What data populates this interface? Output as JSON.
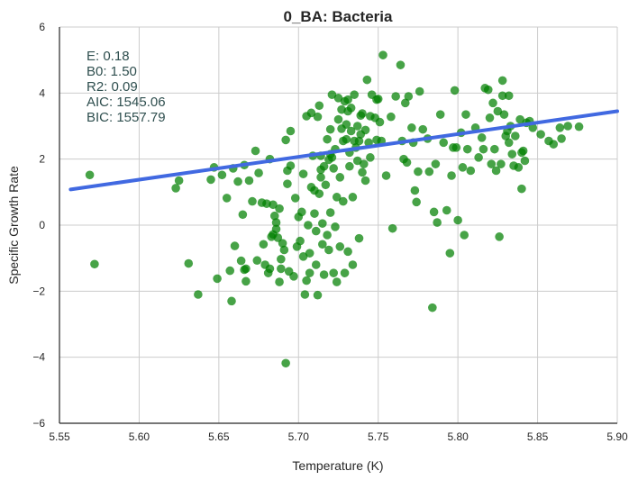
{
  "chart_data": {
    "type": "scatter",
    "title": "0_BA: Bacteria",
    "xlabel": "Temperature (K)",
    "ylabel": "Specific Growth Rate",
    "xlim": [
      5.55,
      5.9
    ],
    "ylim": [
      -6,
      6
    ],
    "x_ticks": [
      "5.55",
      "5.60",
      "5.65",
      "5.70",
      "5.75",
      "5.80",
      "5.85",
      "5.90"
    ],
    "y_ticks": [
      "−6",
      "−4",
      "−2",
      "0",
      "2",
      "4",
      "6"
    ],
    "x_tick_values": [
      5.55,
      5.6,
      5.65,
      5.7,
      5.75,
      5.8,
      5.85,
      5.9
    ],
    "y_tick_values": [
      -6,
      -4,
      -2,
      0,
      2,
      4,
      6
    ],
    "grid": true,
    "colors": {
      "points": "#008000",
      "fit_line": "#4169e1",
      "stats_text": "#2f4f4f",
      "grid": "#cccccc"
    },
    "stats": {
      "e": "E:  0.18",
      "b0": "B0:  1.50",
      "r2": "R2:  0.09",
      "aic": "AIC: 1545.06",
      "bic": "BIC: 1557.79"
    },
    "fit_line": {
      "x": [
        5.557,
        5.9
      ],
      "y": [
        1.08,
        3.45
      ]
    },
    "series": [
      {
        "points": [
          [
            5.569,
            1.52
          ],
          [
            5.572,
            -1.18
          ],
          [
            5.623,
            1.12
          ],
          [
            5.625,
            1.35
          ],
          [
            5.631,
            -1.16
          ],
          [
            5.637,
            -2.1
          ],
          [
            5.645,
            1.38
          ],
          [
            5.647,
            1.75
          ],
          [
            5.649,
            -1.62
          ],
          [
            5.652,
            1.52
          ],
          [
            5.655,
            0.82
          ],
          [
            5.657,
            -1.38
          ],
          [
            5.658,
            -2.3
          ],
          [
            5.659,
            1.72
          ],
          [
            5.66,
            -0.63
          ],
          [
            5.662,
            1.32
          ],
          [
            5.664,
            -1.08
          ],
          [
            5.665,
            0.32
          ],
          [
            5.666,
            1.82
          ],
          [
            5.666,
            -1.35
          ],
          [
            5.667,
            -1.32
          ],
          [
            5.667,
            -1.7
          ],
          [
            5.669,
            1.35
          ],
          [
            5.671,
            0.72
          ],
          [
            5.673,
            2.25
          ],
          [
            5.674,
            -1.07
          ],
          [
            5.675,
            1.58
          ],
          [
            5.677,
            0.68
          ],
          [
            5.678,
            -0.58
          ],
          [
            5.679,
            -1.2
          ],
          [
            5.68,
            0.65
          ],
          [
            5.681,
            -1.45
          ],
          [
            5.682,
            2.0
          ],
          [
            5.682,
            -1.32
          ],
          [
            5.683,
            -0.35
          ],
          [
            5.684,
            -0.28
          ],
          [
            5.684,
            0.62
          ],
          [
            5.685,
            0.28
          ],
          [
            5.686,
            0.08
          ],
          [
            5.686,
            -0.12
          ],
          [
            5.687,
            -0.38
          ],
          [
            5.688,
            0.5
          ],
          [
            5.688,
            -1.72
          ],
          [
            5.689,
            -1.03
          ],
          [
            5.689,
            -1.32
          ],
          [
            5.69,
            -0.55
          ],
          [
            5.691,
            -0.75
          ],
          [
            5.692,
            -4.18
          ],
          [
            5.692,
            2.58
          ],
          [
            5.693,
            1.65
          ],
          [
            5.693,
            1.25
          ],
          [
            5.694,
            -1.4
          ],
          [
            5.695,
            1.8
          ],
          [
            5.695,
            2.85
          ],
          [
            5.697,
            -1.55
          ],
          [
            5.698,
            0.82
          ],
          [
            5.699,
            -0.65
          ],
          [
            5.7,
            0.25
          ],
          [
            5.701,
            -0.48
          ],
          [
            5.702,
            0.4
          ],
          [
            5.703,
            1.55
          ],
          [
            5.703,
            -0.95
          ],
          [
            5.704,
            -2.1
          ],
          [
            5.705,
            -1.68
          ],
          [
            5.706,
            0.0
          ],
          [
            5.707,
            -0.85
          ],
          [
            5.707,
            -1.45
          ],
          [
            5.708,
            3.4
          ],
          [
            5.708,
            1.15
          ],
          [
            5.709,
            2.1
          ],
          [
            5.71,
            0.35
          ],
          [
            5.71,
            1.05
          ],
          [
            5.711,
            -0.18
          ],
          [
            5.711,
            -1.2
          ],
          [
            5.712,
            -2.12
          ],
          [
            5.712,
            3.28
          ],
          [
            5.713,
            0.95
          ],
          [
            5.713,
            3.62
          ],
          [
            5.714,
            1.45
          ],
          [
            5.714,
            1.68
          ],
          [
            5.715,
            0.05
          ],
          [
            5.715,
            -0.58
          ],
          [
            5.716,
            1.78
          ],
          [
            5.716,
            -1.5
          ],
          [
            5.717,
            1.22
          ],
          [
            5.718,
            2.6
          ],
          [
            5.718,
            -0.3
          ],
          [
            5.719,
            1.98
          ],
          [
            5.719,
            -0.75
          ],
          [
            5.72,
            2.15
          ],
          [
            5.72,
            0.38
          ],
          [
            5.721,
            3.95
          ],
          [
            5.721,
            2.05
          ],
          [
            5.722,
            1.72
          ],
          [
            5.722,
            -1.45
          ],
          [
            5.723,
            2.3
          ],
          [
            5.723,
            -0.05
          ],
          [
            5.724,
            0.85
          ],
          [
            5.724,
            -1.72
          ],
          [
            5.725,
            3.85
          ],
          [
            5.725,
            3.2
          ],
          [
            5.726,
            1.45
          ],
          [
            5.726,
            -0.65
          ],
          [
            5.727,
            3.5
          ],
          [
            5.727,
            2.92
          ],
          [
            5.728,
            2.55
          ],
          [
            5.728,
            0.72
          ],
          [
            5.729,
            3.75
          ],
          [
            5.729,
            -1.45
          ],
          [
            5.73,
            3.05
          ],
          [
            5.73,
            2.6
          ],
          [
            5.731,
            3.45
          ],
          [
            5.731,
            -0.8
          ],
          [
            5.732,
            2.2
          ],
          [
            5.732,
            1.78
          ],
          [
            5.733,
            3.55
          ],
          [
            5.733,
            2.85
          ],
          [
            5.734,
            0.85
          ],
          [
            5.734,
            -1.2
          ],
          [
            5.735,
            3.95
          ],
          [
            5.735,
            2.55
          ],
          [
            5.736,
            2.35
          ],
          [
            5.737,
            3.0
          ],
          [
            5.737,
            1.95
          ],
          [
            5.738,
            2.55
          ],
          [
            5.738,
            -0.4
          ],
          [
            5.739,
            3.32
          ],
          [
            5.739,
            2.75
          ],
          [
            5.74,
            1.6
          ],
          [
            5.74,
            3.38
          ],
          [
            5.741,
            1.85
          ],
          [
            5.742,
            1.35
          ],
          [
            5.742,
            2.88
          ],
          [
            5.743,
            4.4
          ],
          [
            5.744,
            2.5
          ],
          [
            5.745,
            3.3
          ],
          [
            5.745,
            2.05
          ],
          [
            5.746,
            3.95
          ],
          [
            5.748,
            3.25
          ],
          [
            5.749,
            3.8
          ],
          [
            5.749,
            2.58
          ],
          [
            5.75,
            3.82
          ],
          [
            5.751,
            3.12
          ],
          [
            5.752,
            2.55
          ],
          [
            5.753,
            5.15
          ],
          [
            5.755,
            1.5
          ],
          [
            5.758,
            3.28
          ],
          [
            5.759,
            -0.1
          ],
          [
            5.761,
            3.9
          ],
          [
            5.764,
            4.85
          ],
          [
            5.765,
            2.55
          ],
          [
            5.766,
            2.0
          ],
          [
            5.767,
            3.7
          ],
          [
            5.768,
            1.9
          ],
          [
            5.769,
            3.9
          ],
          [
            5.771,
            2.95
          ],
          [
            5.772,
            2.5
          ],
          [
            5.773,
            1.05
          ],
          [
            5.774,
            0.7
          ],
          [
            5.775,
            1.62
          ],
          [
            5.776,
            4.05
          ],
          [
            5.778,
            2.9
          ],
          [
            5.781,
            2.62
          ],
          [
            5.782,
            1.62
          ],
          [
            5.784,
            -2.5
          ],
          [
            5.785,
            0.4
          ],
          [
            5.786,
            1.85
          ],
          [
            5.787,
            0.08
          ],
          [
            5.789,
            3.35
          ],
          [
            5.791,
            2.5
          ],
          [
            5.793,
            0.45
          ],
          [
            5.795,
            -0.85
          ],
          [
            5.796,
            1.5
          ],
          [
            5.797,
            2.35
          ],
          [
            5.798,
            4.08
          ],
          [
            5.799,
            2.35
          ],
          [
            5.8,
            0.15
          ],
          [
            5.802,
            2.8
          ],
          [
            5.803,
            1.75
          ],
          [
            5.804,
            -0.3
          ],
          [
            5.805,
            3.35
          ],
          [
            5.806,
            2.3
          ],
          [
            5.808,
            1.65
          ],
          [
            5.811,
            2.95
          ],
          [
            5.813,
            2.05
          ],
          [
            5.815,
            2.65
          ],
          [
            5.816,
            2.3
          ],
          [
            5.817,
            4.15
          ],
          [
            5.819,
            4.1
          ],
          [
            5.82,
            3.25
          ],
          [
            5.821,
            1.85
          ],
          [
            5.822,
            3.7
          ],
          [
            5.823,
            2.3
          ],
          [
            5.824,
            1.65
          ],
          [
            5.825,
            3.45
          ],
          [
            5.826,
            -0.35
          ],
          [
            5.827,
            1.85
          ],
          [
            5.828,
            4.38
          ],
          [
            5.828,
            3.92
          ],
          [
            5.829,
            3.35
          ],
          [
            5.83,
            2.7
          ],
          [
            5.831,
            2.85
          ],
          [
            5.832,
            2.5
          ],
          [
            5.832,
            3.92
          ],
          [
            5.833,
            3.0
          ],
          [
            5.834,
            2.15
          ],
          [
            5.835,
            1.8
          ],
          [
            5.836,
            2.7
          ],
          [
            5.838,
            1.75
          ],
          [
            5.839,
            3.2
          ],
          [
            5.84,
            2.2
          ],
          [
            5.841,
            2.25
          ],
          [
            5.842,
            1.95
          ],
          [
            5.843,
            3.1
          ],
          [
            5.845,
            3.15
          ],
          [
            5.847,
            2.95
          ],
          [
            5.852,
            2.75
          ],
          [
            5.857,
            2.55
          ],
          [
            5.86,
            2.45
          ],
          [
            5.864,
            2.95
          ],
          [
            5.865,
            2.62
          ],
          [
            5.869,
            3.0
          ],
          [
            5.876,
            2.98
          ],
          [
            5.84,
            1.1
          ],
          [
            5.714,
            2.1
          ],
          [
            5.731,
            3.8
          ],
          [
            5.72,
            2.9
          ],
          [
            5.705,
            3.3
          ]
        ]
      }
    ]
  }
}
